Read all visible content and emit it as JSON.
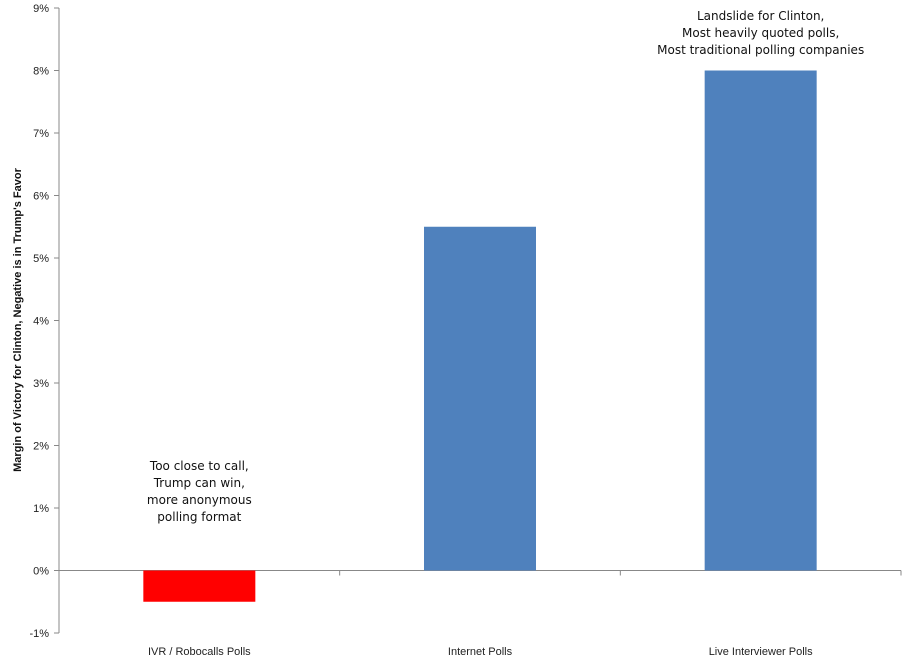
{
  "chart_data": {
    "type": "bar",
    "ylabel": "Margin of Victory for Clinton, Negative is in Trump's Favor",
    "ylim": [
      -1,
      9
    ],
    "y_ticks": [
      "-1%",
      "0%",
      "1%",
      "2%",
      "3%",
      "4%",
      "5%",
      "6%",
      "7%",
      "8%",
      "9%"
    ],
    "categories": [
      "IVR / Robocalls Polls",
      "Internet Polls",
      "Live Interviewer Polls"
    ],
    "values": [
      -0.5,
      5.5,
      8.0
    ],
    "bar_colors": [
      "#ff0000",
      "#4f81bd",
      "#4f81bd"
    ],
    "grid": false,
    "annotations": [
      {
        "category": "IVR / Robocalls Polls",
        "lines": [
          "Too close to call,",
          "Trump can win,",
          "more anonymous",
          "polling format"
        ]
      },
      {
        "category": "Live Interviewer Polls",
        "lines": [
          "Landslide for Clinton,",
          "Most heavily quoted polls,",
          "Most traditional polling companies"
        ]
      }
    ]
  }
}
